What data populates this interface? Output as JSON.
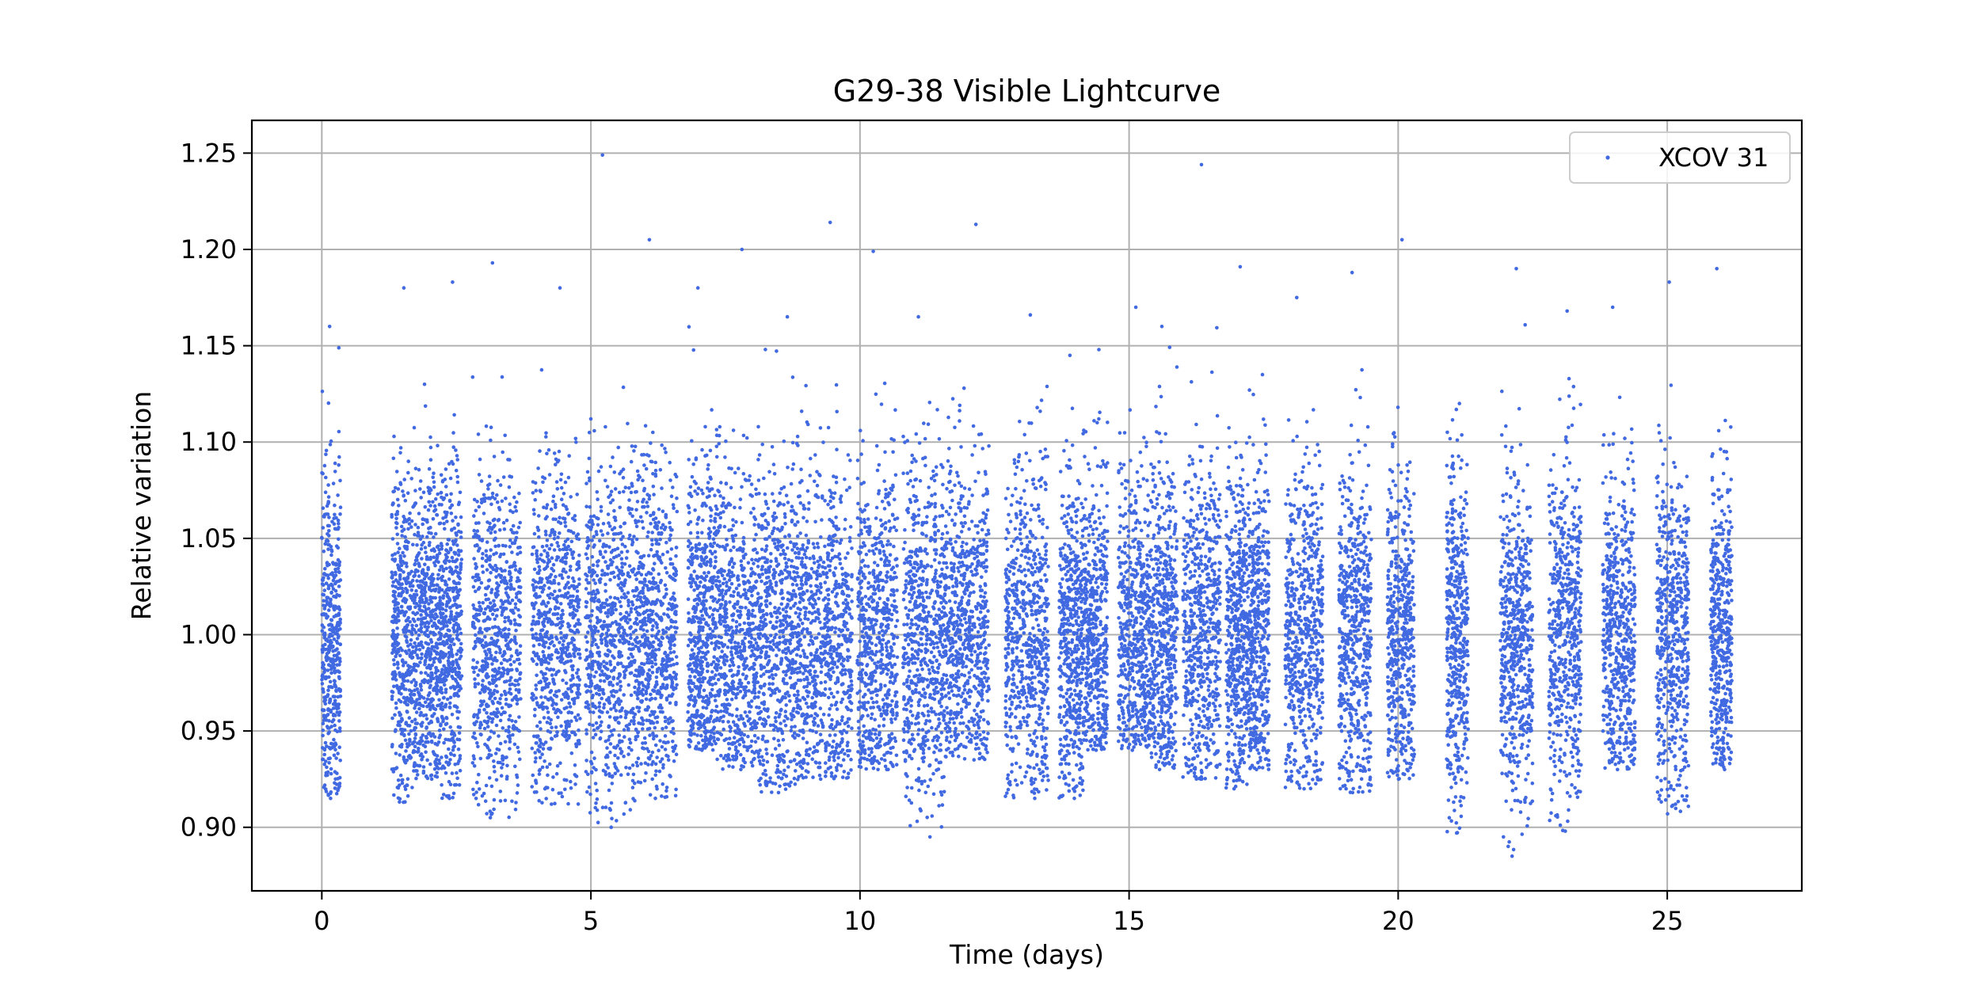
{
  "chart_data": {
    "type": "scatter",
    "title": "G29-38 Visible Lightcurve",
    "xlabel": "Time (days)",
    "ylabel": "Relative variation",
    "xlim": [
      -1.3,
      27.5
    ],
    "ylim": [
      0.867,
      1.267
    ],
    "xticks": [
      0,
      5,
      10,
      15,
      20,
      25
    ],
    "yticks": [
      0.9,
      0.95,
      1.0,
      1.05,
      1.1,
      1.15,
      1.2,
      1.25
    ],
    "xtick_labels": [
      "0",
      "5",
      "10",
      "15",
      "20",
      "25"
    ],
    "ytick_labels": [
      "0.90",
      "0.95",
      "1.00",
      "1.05",
      "1.10",
      "1.15",
      "1.20",
      "1.25"
    ],
    "grid": true,
    "legend": {
      "position": "top-right",
      "entries": [
        "XCOV 31"
      ]
    },
    "colors": {
      "series": "#4169e1",
      "grid": "#b0b0b0",
      "axes": "#000000"
    },
    "series": [
      {
        "name": "XCOV 31",
        "observing_blocks": [
          {
            "t_start": 0.0,
            "t_end": 0.35,
            "y_min": 0.915,
            "y_max": 1.16
          },
          {
            "t_start": 1.3,
            "t_end": 1.75,
            "y_min": 0.913,
            "y_max": 1.18
          },
          {
            "t_start": 1.75,
            "t_end": 2.2,
            "y_min": 0.925,
            "y_max": 1.13
          },
          {
            "t_start": 2.2,
            "t_end": 2.6,
            "y_min": 0.915,
            "y_max": 1.183
          },
          {
            "t_start": 2.8,
            "t_end": 3.7,
            "y_min": 0.905,
            "y_max": 1.193
          },
          {
            "t_start": 3.9,
            "t_end": 4.8,
            "y_min": 0.912,
            "y_max": 1.18
          },
          {
            "t_start": 4.9,
            "t_end": 5.85,
            "y_min": 0.9,
            "y_max": 1.249
          },
          {
            "t_start": 5.85,
            "t_end": 6.6,
            "y_min": 0.915,
            "y_max": 1.205
          },
          {
            "t_start": 6.8,
            "t_end": 7.3,
            "y_min": 0.94,
            "y_max": 1.18
          },
          {
            "t_start": 7.3,
            "t_end": 8.1,
            "y_min": 0.93,
            "y_max": 1.2
          },
          {
            "t_start": 8.1,
            "t_end": 8.9,
            "y_min": 0.918,
            "y_max": 1.165
          },
          {
            "t_start": 8.9,
            "t_end": 9.85,
            "y_min": 0.925,
            "y_max": 1.214
          },
          {
            "t_start": 9.95,
            "t_end": 10.7,
            "y_min": 0.93,
            "y_max": 1.199
          },
          {
            "t_start": 10.8,
            "t_end": 11.6,
            "y_min": 0.895,
            "y_max": 1.165
          },
          {
            "t_start": 11.6,
            "t_end": 12.4,
            "y_min": 0.935,
            "y_max": 1.213
          },
          {
            "t_start": 12.7,
            "t_end": 13.5,
            "y_min": 0.915,
            "y_max": 1.166
          },
          {
            "t_start": 13.7,
            "t_end": 14.15,
            "y_min": 0.915,
            "y_max": 1.145
          },
          {
            "t_start": 14.15,
            "t_end": 14.6,
            "y_min": 0.94,
            "y_max": 1.148
          },
          {
            "t_start": 14.8,
            "t_end": 15.4,
            "y_min": 0.94,
            "y_max": 1.17
          },
          {
            "t_start": 15.4,
            "t_end": 15.9,
            "y_min": 0.93,
            "y_max": 1.16
          },
          {
            "t_start": 16.0,
            "t_end": 16.7,
            "y_min": 0.925,
            "y_max": 1.244
          },
          {
            "t_start": 16.8,
            "t_end": 17.2,
            "y_min": 0.92,
            "y_max": 1.191
          },
          {
            "t_start": 17.2,
            "t_end": 17.6,
            "y_min": 0.93,
            "y_max": 1.135
          },
          {
            "t_start": 17.9,
            "t_end": 18.6,
            "y_min": 0.92,
            "y_max": 1.175
          },
          {
            "t_start": 18.9,
            "t_end": 19.5,
            "y_min": 0.918,
            "y_max": 1.188
          },
          {
            "t_start": 19.8,
            "t_end": 20.3,
            "y_min": 0.925,
            "y_max": 1.205
          },
          {
            "t_start": 20.9,
            "t_end": 21.3,
            "y_min": 0.897,
            "y_max": 1.12
          },
          {
            "t_start": 21.9,
            "t_end": 22.5,
            "y_min": 0.885,
            "y_max": 1.19
          },
          {
            "t_start": 22.8,
            "t_end": 23.4,
            "y_min": 0.898,
            "y_max": 1.168
          },
          {
            "t_start": 23.8,
            "t_end": 24.4,
            "y_min": 0.93,
            "y_max": 1.17
          },
          {
            "t_start": 24.8,
            "t_end": 25.4,
            "y_min": 0.907,
            "y_max": 1.183
          },
          {
            "t_start": 25.8,
            "t_end": 26.2,
            "y_min": 0.93,
            "y_max": 1.19
          }
        ]
      }
    ]
  }
}
